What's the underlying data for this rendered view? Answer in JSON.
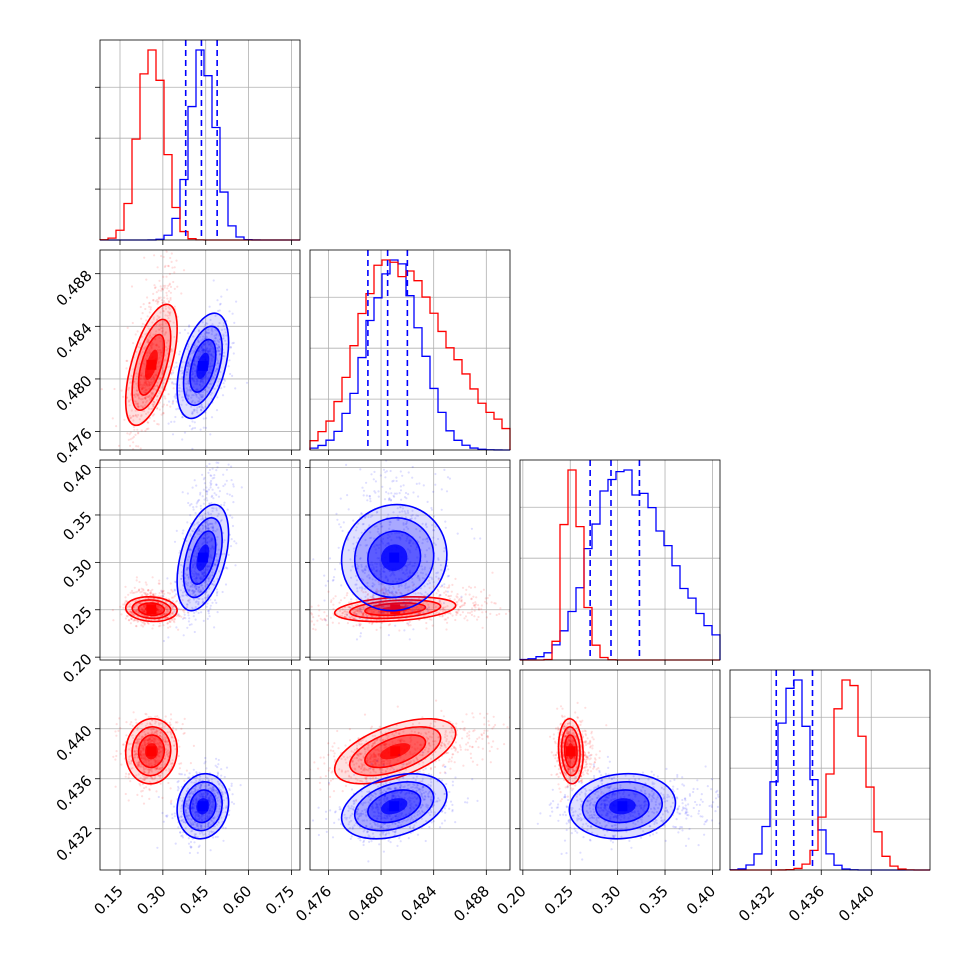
{
  "chart_data": {
    "type": "corner",
    "title": "",
    "variables": [
      {
        "label": "",
        "range": [
          0.08,
          0.78
        ],
        "ticks": [
          0.15,
          0.3,
          0.45,
          0.6,
          0.75
        ],
        "tick_labels": [
          "0.15",
          "0.30",
          "0.45",
          "0.60",
          "0.75"
        ]
      },
      {
        "label": "",
        "range": [
          0.4746,
          0.4898
        ],
        "ticks": [
          0.476,
          0.48,
          0.484,
          0.488
        ],
        "tick_labels": [
          "0.476",
          "0.480",
          "0.484",
          "0.488"
        ]
      },
      {
        "label": "",
        "range": [
          0.197,
          0.408
        ],
        "ticks": [
          0.2,
          0.25,
          0.3,
          0.35,
          0.4
        ],
        "tick_labels": [
          "0.20",
          "0.25",
          "0.30",
          "0.35",
          "0.40"
        ]
      },
      {
        "label": "",
        "range": [
          0.4287,
          0.4447
        ],
        "ticks": [
          0.432,
          0.436,
          0.44
        ],
        "tick_labels": [
          "0.432",
          "0.436",
          "0.440"
        ]
      }
    ],
    "series": [
      {
        "name": "",
        "color": "#ff0000",
        "mean": [
          0.26,
          0.4805,
          0.249,
          0.4382
        ],
        "std": [
          0.045,
          0.0023,
          0.0065,
          0.0013
        ],
        "hist_shape": [
          "normal",
          "skewed",
          "skewed",
          "normal"
        ],
        "corr": [
          [
            1,
            0.6,
            -0.1,
            0.05
          ],
          [
            0.6,
            1,
            0.3,
            0.55
          ],
          [
            -0.1,
            0.3,
            1,
            -0.1
          ],
          [
            0.05,
            0.55,
            -0.1,
            1
          ]
        ]
      },
      {
        "name": "",
        "color": "#0000ff",
        "mean": [
          0.44,
          0.481,
          0.298,
          0.4338
        ],
        "std": [
          0.045,
          0.002,
          0.028,
          0.0013
        ],
        "hist_shape": [
          "normal",
          "normal",
          "skewed",
          "normal"
        ],
        "corr": [
          [
            1,
            0.45,
            0.45,
            0.1
          ],
          [
            0.45,
            1,
            0.05,
            0.35
          ],
          [
            0.45,
            0.05,
            1,
            0.1
          ],
          [
            0.1,
            0.35,
            0.1,
            1
          ]
        ]
      }
    ],
    "quantile_lines": {
      "color": "#0000ff",
      "style": "dashed",
      "values": [
        [
          0.38,
          0.435,
          0.49
        ],
        [
          0.479,
          0.4805,
          0.482
        ],
        [
          0.271,
          0.293,
          0.323
        ],
        [
          0.4324,
          0.4338,
          0.4353
        ]
      ]
    },
    "contour_levels_sigma": [
      0.5,
      1.0,
      1.5,
      2.0
    ],
    "grid": true,
    "legend": "none"
  }
}
